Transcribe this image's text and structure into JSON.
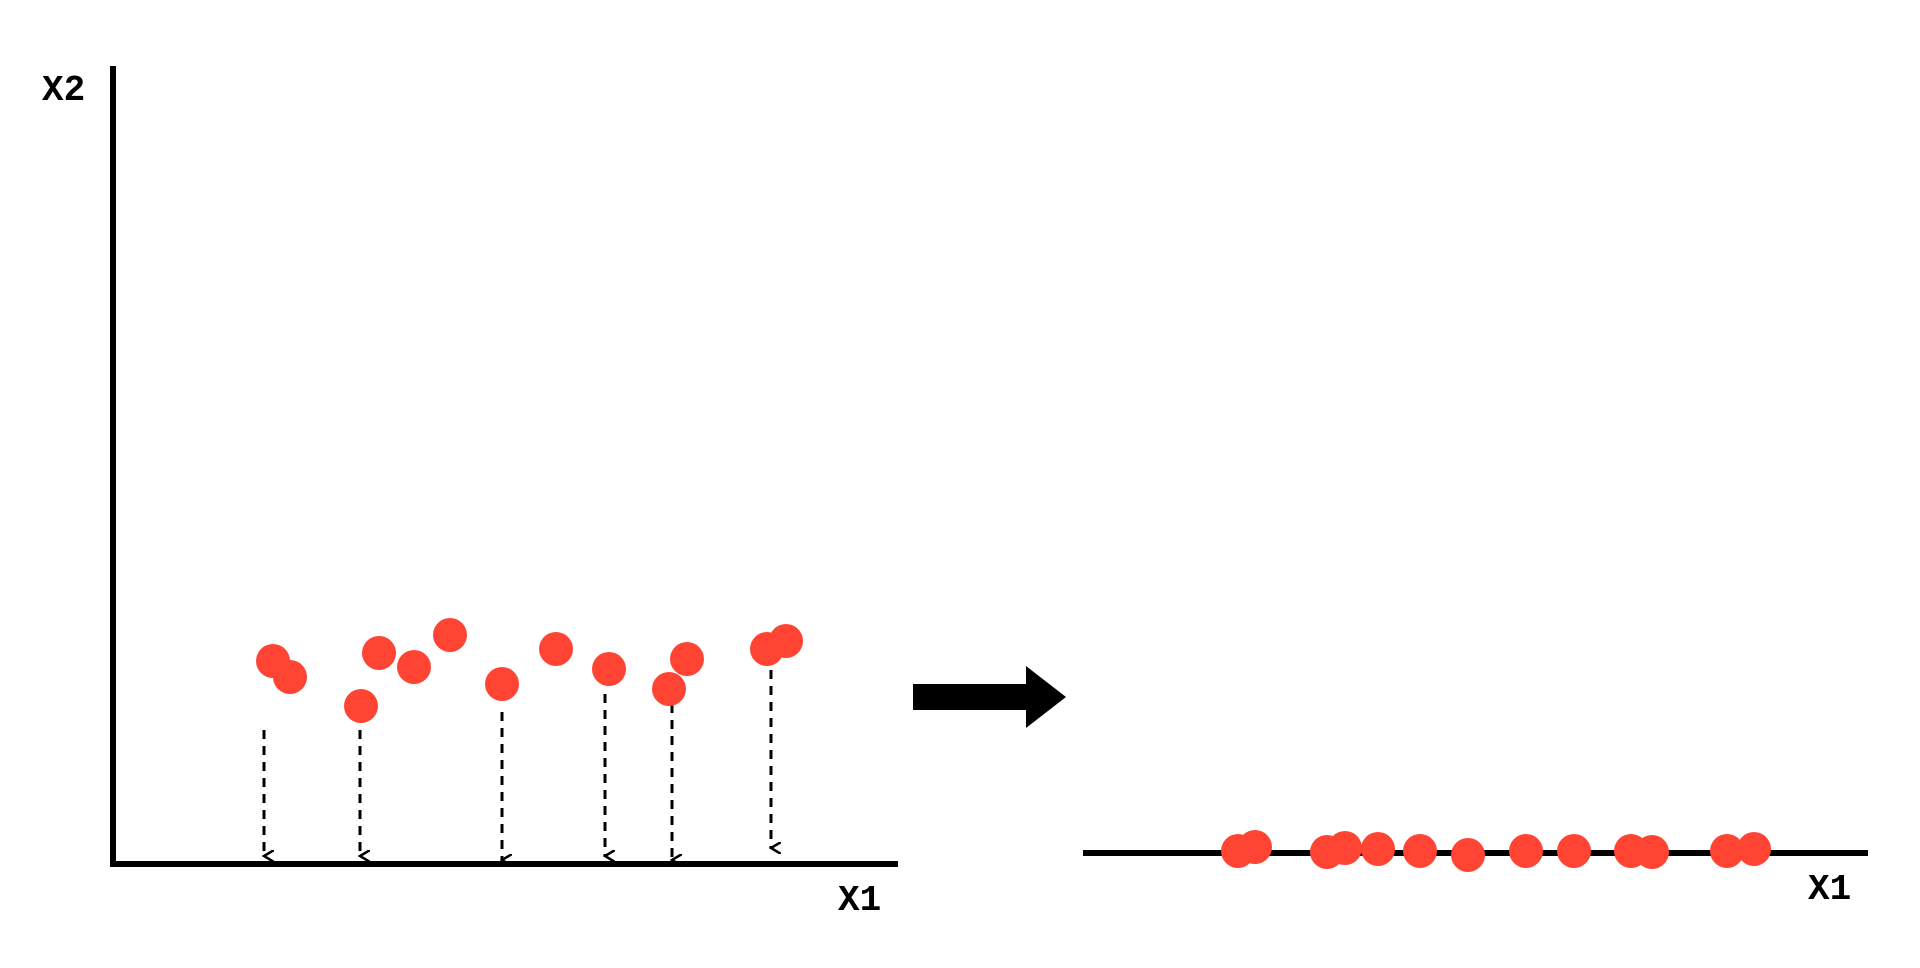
{
  "diagram": {
    "left_panel": {
      "y_axis_label": "X2",
      "x_axis_label": "X1"
    },
    "right_panel": {
      "x_axis_label": "X1"
    }
  },
  "colors": {
    "point": "#ff4433",
    "axis": "#000000",
    "arrow": "#000000",
    "background": "#ffffff"
  }
}
